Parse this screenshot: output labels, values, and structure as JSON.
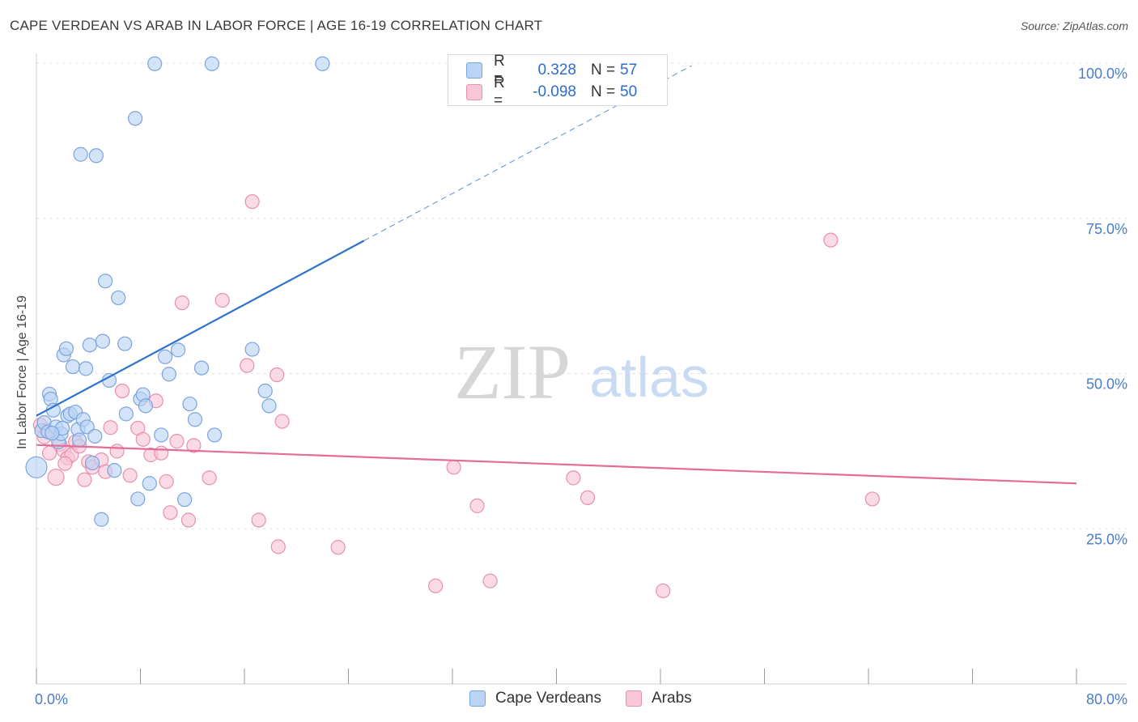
{
  "title": "CAPE VERDEAN VS ARAB IN LABOR FORCE | AGE 16-19 CORRELATION CHART",
  "source": "Source: ZipAtlas.com",
  "watermark": {
    "zip": "ZIP",
    "atlas": "atlas"
  },
  "legend": {
    "rows": [
      {
        "r_label": "R =",
        "r_value": "0.328",
        "n_label": "N =",
        "n_value": "57"
      },
      {
        "r_label": "R =",
        "r_value": "-0.098",
        "n_label": "N =",
        "n_value": "50"
      }
    ]
  },
  "colors": {
    "blue_fill": "#bcd4f4",
    "blue_stroke": "#7ba4dd",
    "blue_line": "#2f72cc",
    "pink_fill": "#f8c6d6",
    "pink_stroke": "#e890ad",
    "pink_line": "#e46c96",
    "grid": "#e3e3e3",
    "tick_text": "#4a7cc9"
  },
  "chart_data": {
    "type": "scatter",
    "title": "CAPE VERDEAN VS ARAB IN LABOR FORCE | AGE 16-19 CORRELATION CHART",
    "xlabel": "",
    "ylabel": "In Labor Force | Age 16-19",
    "xlim": [
      0,
      80
    ],
    "ylim": [
      0,
      100
    ],
    "x_tick_labels": [
      "0.0%",
      "80.0%"
    ],
    "y_ticks": [
      25,
      50,
      75,
      100
    ],
    "y_tick_labels": [
      "25.0%",
      "50.0%",
      "75.0%",
      "100.0%"
    ],
    "grid": true,
    "legend_position": "top-center",
    "series": [
      {
        "name": "Cape Verdeans",
        "color": "#7ba4dd",
        "r": 0.328,
        "n": 57,
        "trend": {
          "x": [
            0,
            25.2
          ],
          "y": [
            43.2,
            71.4
          ],
          "extended_to": [
            50.4,
            99.6
          ]
        },
        "points": [
          [
            0,
            34.9
          ],
          [
            0.4,
            40.8
          ],
          [
            0.6,
            42.1
          ],
          [
            0.9,
            40.6
          ],
          [
            1.0,
            46.7
          ],
          [
            1.1,
            45.9
          ],
          [
            1.3,
            44.1
          ],
          [
            1.5,
            41.4
          ],
          [
            1.7,
            39.0
          ],
          [
            1.9,
            40.3
          ],
          [
            2.1,
            53.0
          ],
          [
            2.3,
            54.0
          ],
          [
            2.4,
            43.2
          ],
          [
            2.6,
            43.5
          ],
          [
            2.8,
            51.1
          ],
          [
            3.0,
            43.8
          ],
          [
            3.2,
            41.0
          ],
          [
            3.4,
            85.3
          ],
          [
            3.6,
            42.6
          ],
          [
            3.8,
            50.8
          ],
          [
            3.9,
            41.4
          ],
          [
            4.1,
            54.6
          ],
          [
            4.3,
            35.6
          ],
          [
            4.5,
            39.9
          ],
          [
            4.6,
            85.1
          ],
          [
            5.0,
            26.5
          ],
          [
            5.1,
            55.2
          ],
          [
            5.3,
            64.9
          ],
          [
            5.6,
            48.9
          ],
          [
            6.0,
            34.4
          ],
          [
            6.3,
            62.2
          ],
          [
            6.8,
            54.8
          ],
          [
            7.6,
            91.1
          ],
          [
            7.8,
            29.8
          ],
          [
            8.0,
            45.9
          ],
          [
            8.2,
            46.6
          ],
          [
            8.4,
            44.8
          ],
          [
            8.7,
            32.3
          ],
          [
            9.1,
            99.9
          ],
          [
            9.6,
            40.1
          ],
          [
            9.9,
            52.7
          ],
          [
            10.2,
            49.9
          ],
          [
            10.9,
            53.8
          ],
          [
            11.4,
            29.7
          ],
          [
            11.8,
            45.1
          ],
          [
            12.7,
            50.9
          ],
          [
            13.5,
            99.9
          ],
          [
            13.7,
            40.1
          ],
          [
            16.6,
            53.9
          ],
          [
            17.6,
            47.2
          ],
          [
            17.9,
            44.8
          ],
          [
            22.0,
            99.9
          ],
          [
            2.0,
            41.2
          ],
          [
            1.2,
            40.4
          ],
          [
            3.3,
            39.3
          ],
          [
            6.9,
            43.5
          ],
          [
            12.2,
            42.6
          ]
        ]
      },
      {
        "name": "Arabs",
        "color": "#e890ad",
        "r": -0.098,
        "n": 50,
        "trend": {
          "x": [
            0,
            80
          ],
          "y": [
            38.5,
            32.3
          ]
        },
        "points": [
          [
            0.3,
            41.7
          ],
          [
            0.6,
            39.8
          ],
          [
            1.0,
            37.2
          ],
          [
            1.5,
            33.3
          ],
          [
            1.8,
            38.6
          ],
          [
            2.1,
            37.6
          ],
          [
            2.4,
            36.4
          ],
          [
            2.7,
            36.9
          ],
          [
            3.0,
            39.0
          ],
          [
            3.3,
            38.3
          ],
          [
            3.7,
            32.9
          ],
          [
            4.0,
            35.8
          ],
          [
            4.3,
            34.9
          ],
          [
            5.0,
            36.1
          ],
          [
            5.3,
            34.2
          ],
          [
            5.7,
            41.3
          ],
          [
            6.2,
            37.5
          ],
          [
            6.6,
            47.2
          ],
          [
            7.2,
            33.6
          ],
          [
            7.8,
            41.2
          ],
          [
            8.2,
            39.4
          ],
          [
            8.8,
            36.9
          ],
          [
            9.2,
            45.6
          ],
          [
            9.6,
            37.2
          ],
          [
            10.3,
            27.6
          ],
          [
            10.8,
            39.1
          ],
          [
            11.2,
            61.4
          ],
          [
            11.7,
            26.4
          ],
          [
            12.1,
            38.4
          ],
          [
            13.3,
            33.2
          ],
          [
            14.3,
            61.8
          ],
          [
            16.2,
            51.3
          ],
          [
            16.6,
            77.7
          ],
          [
            17.1,
            26.4
          ],
          [
            18.6,
            22.1
          ],
          [
            18.9,
            42.3
          ],
          [
            18.5,
            49.8
          ],
          [
            23.2,
            22.0
          ],
          [
            30.7,
            15.8
          ],
          [
            32.1,
            34.9
          ],
          [
            33.9,
            28.7
          ],
          [
            34.9,
            16.6
          ],
          [
            41.3,
            33.2
          ],
          [
            42.4,
            30.0
          ],
          [
            48.2,
            15.0
          ],
          [
            61.1,
            71.5
          ],
          [
            64.3,
            29.8
          ],
          [
            0.8,
            40.9
          ],
          [
            10.0,
            32.6
          ],
          [
            2.2,
            35.5
          ]
        ]
      }
    ]
  }
}
